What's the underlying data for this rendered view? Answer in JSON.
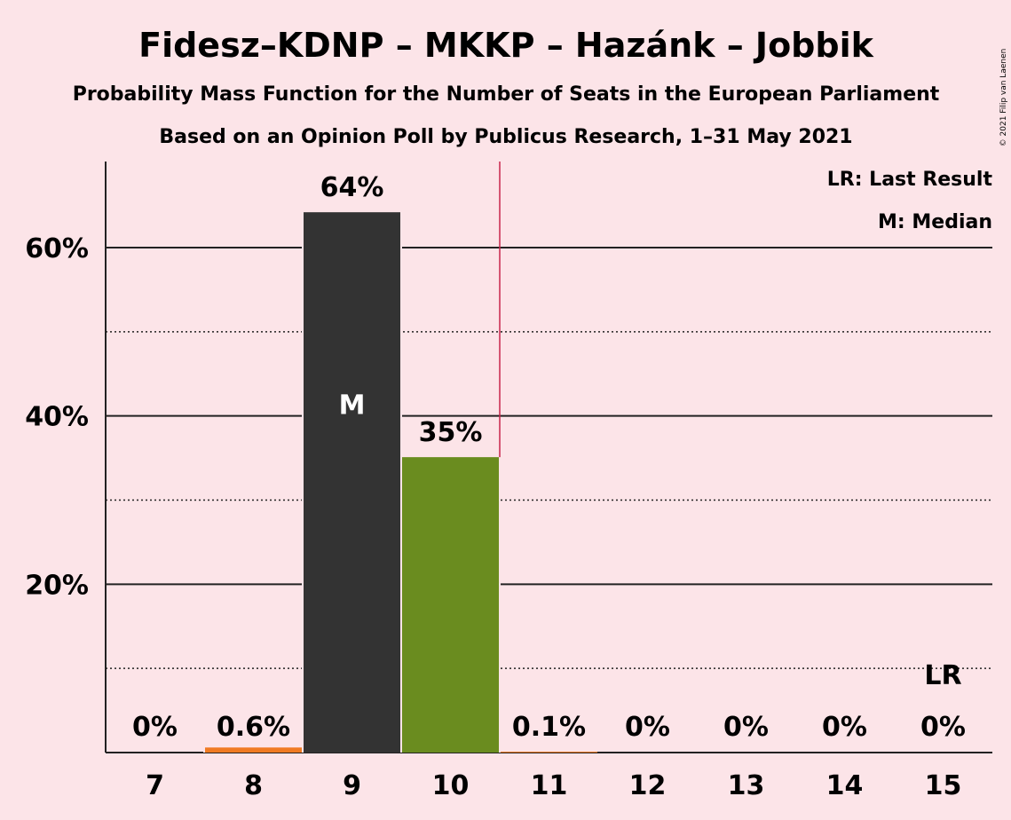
{
  "chart_data": {
    "type": "bar",
    "title": "Fidesz–KDNP – MKKP – Hazánk – Jobbik",
    "subtitle": "Probability Mass Function for the Number of Seats in the European Parliament",
    "subtitle2": "Based on an Opinion Poll by Publicus Research, 1–31 May 2021",
    "copyright": "© 2021 Filip van Laenen",
    "legend": {
      "lr": "LR: Last Result",
      "median": "M: Median"
    },
    "categories": [
      "7",
      "8",
      "9",
      "10",
      "11",
      "12",
      "13",
      "14",
      "15"
    ],
    "values": [
      0,
      0.6,
      64.2,
      35.1,
      0.1,
      0,
      0,
      0,
      0
    ],
    "labels": [
      "0%",
      "0.6%",
      "64%",
      "35%",
      "0.1%",
      "0%",
      "0%",
      "0%",
      "0%"
    ],
    "bar_colors": [
      "#f07a22",
      "#f07a22",
      "#333333",
      "#6a8c1f",
      "#f07a22",
      "#f07a22",
      "#f07a22",
      "#f07a22",
      "#f07a22"
    ],
    "median_category": "9",
    "median_marker": "M",
    "last_result_category": "15",
    "last_result_marker": "LR",
    "majority_line_after": "10",
    "ylim": [
      0,
      70
    ],
    "yticks_major": [
      20,
      40,
      60
    ],
    "ytick_labels": [
      "20%",
      "40%",
      "60%"
    ],
    "yticks_minor": [
      10,
      30,
      50
    ],
    "grid": true,
    "legend_position": "top-right",
    "xlabel": "",
    "ylabel": ""
  }
}
